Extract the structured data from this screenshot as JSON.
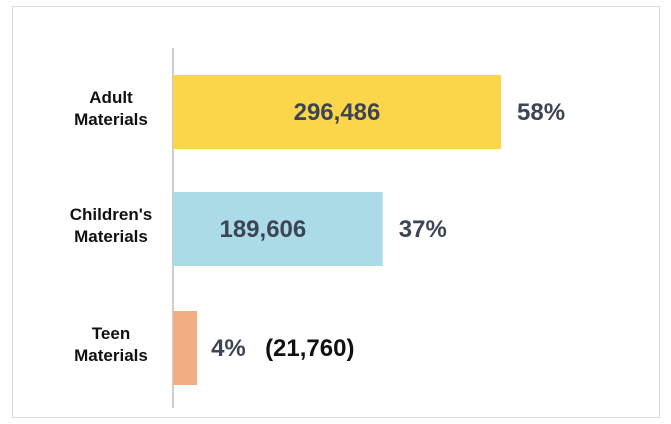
{
  "chart_data": {
    "type": "bar",
    "orientation": "horizontal",
    "categories": [
      [
        "Adult",
        "Materials"
      ],
      [
        "Children's",
        "Materials"
      ],
      [
        "Teen",
        "Materials"
      ]
    ],
    "values": [
      296486,
      189606,
      21760
    ],
    "value_labels": [
      "296,486",
      "189,606",
      "(21,760)"
    ],
    "percent_labels": [
      "58%",
      "37%",
      "4%"
    ],
    "colors": [
      "#fcd64a",
      "#acdbe8",
      "#f3ad82"
    ],
    "xlim": [
      0,
      296486
    ],
    "grid": false
  }
}
